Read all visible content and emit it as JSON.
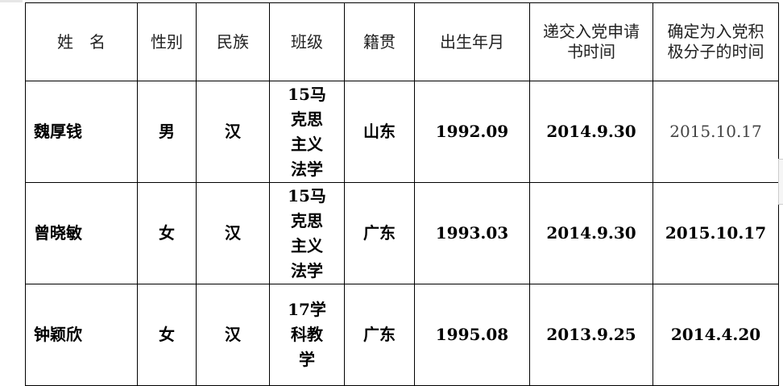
{
  "table": {
    "headers": [
      "姓　名",
      "性别",
      "民族",
      "班级",
      "籍贯",
      "出生年月",
      "递交入党申请书时间",
      "确定为入党积极分子的时间"
    ],
    "rows": [
      {
        "name": "魏厚钱",
        "gender": "男",
        "ethnicity": "汉",
        "class": "15马克思主义法学",
        "hometown": "山东",
        "birth": "1992.09",
        "application": "2014.9.30",
        "activist": "2015.10.17"
      },
      {
        "name": "曾晓敏",
        "gender": "女",
        "ethnicity": "汉",
        "class": "15马克思主义法学",
        "hometown": "广东",
        "birth": "1993.03",
        "application": "2014.9.30",
        "activist": "2015.10.17"
      },
      {
        "name": "钟颖欣",
        "gender": "女",
        "ethnicity": "汉",
        "class": "17学科教学",
        "hometown": "广东",
        "birth": "1995.08",
        "application": "2013.9.25",
        "activist": "2014.4.20"
      }
    ]
  }
}
